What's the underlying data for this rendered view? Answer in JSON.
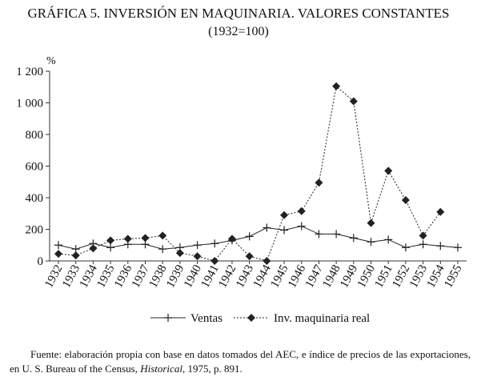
{
  "chart_data": {
    "type": "line",
    "title": "GRÁFICA 5. INVERSIÓN EN MAQUINARIA. VALORES CONSTANTES",
    "subtitle": "(1932=100)",
    "y_unit": "%",
    "categories": [
      "1932",
      "1933",
      "1934",
      "1935",
      "1936",
      "1937",
      "1938",
      "1939",
      "1940",
      "1941",
      "1942",
      "1943",
      "1944",
      "1945",
      "1946",
      "1947",
      "1948",
      "1949",
      "1950",
      "1951",
      "1952",
      "1953",
      "1954",
      "1955"
    ],
    "series": [
      {
        "name": "Ventas",
        "color": "#222222",
        "marker": "plus",
        "dash": "solid",
        "values": [
          100,
          75,
          110,
          85,
          105,
          105,
          75,
          85,
          100,
          110,
          130,
          155,
          210,
          195,
          220,
          170,
          170,
          145,
          120,
          135,
          85,
          105,
          95,
          85
        ]
      },
      {
        "name": "Inv. maquinaria real",
        "color": "#222222",
        "marker": "diamond",
        "dash": "dotted",
        "values": [
          45,
          35,
          80,
          130,
          140,
          145,
          160,
          50,
          30,
          0,
          140,
          30,
          0,
          290,
          315,
          495,
          1105,
          1010,
          240,
          570,
          385,
          160,
          310,
          null
        ]
      }
    ],
    "ylim": [
      0,
      1200
    ],
    "yticks": [
      0,
      200,
      400,
      600,
      800,
      {
        "value": 1000,
        "label": "1 000"
      },
      {
        "value": 1200,
        "label": "1 200"
      }
    ],
    "source": [
      "Fuente: elaboración propia con base en datos tomados del AEC, e índice de precios de las exportaciones, en U. S. Bureau of the Census, ",
      "Historical",
      ", 1975, p. 891."
    ]
  }
}
